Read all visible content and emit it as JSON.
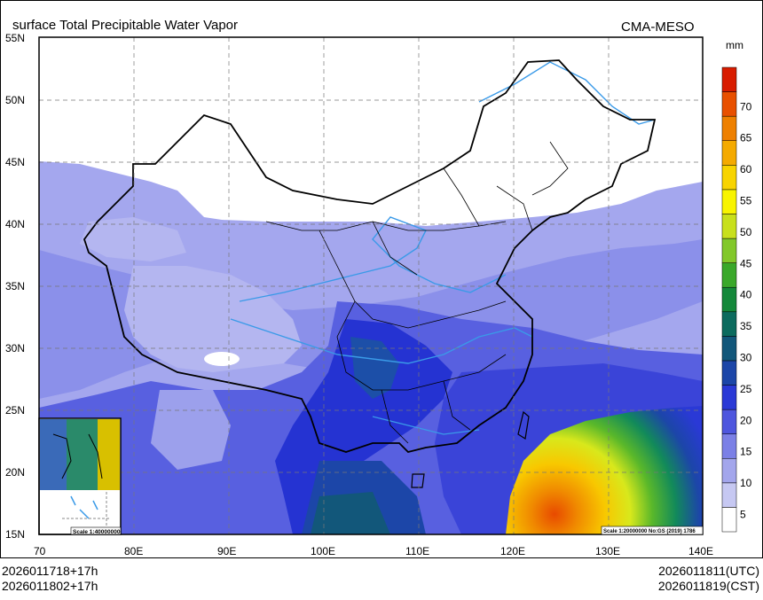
{
  "title": "surface Total Precipitable Water Vapor",
  "model": "CMA-MESO",
  "unit": "mm",
  "footer": {
    "left_line1": "2026011718+17h",
    "left_line2": "2026011802+17h",
    "right_line1": "2026011811(UTC)",
    "right_line2": "2026011819(CST)"
  },
  "map": {
    "lon_ticks": [
      "70",
      "80E",
      "90E",
      "100E",
      "110E",
      "120E",
      "130E",
      "140E"
    ],
    "lat_ticks": [
      "55N",
      "50N",
      "45N",
      "40N",
      "35N",
      "30N",
      "25N",
      "20N",
      "15N"
    ],
    "scale_main": "Scale 1:20000000 No:GS (2019) 1786",
    "scale_inset": "Scale 1:40000000"
  },
  "colorbar": {
    "labels": [
      "5",
      "10",
      "15",
      "20",
      "25",
      "30",
      "35",
      "40",
      "45",
      "50",
      "55",
      "60",
      "65",
      "70"
    ],
    "colors": [
      "#ffffff",
      "#c6c8f2",
      "#a3a6ec",
      "#7b80e6",
      "#4e56de",
      "#2a39d6",
      "#1c46a8",
      "#12577a",
      "#0c6b5e",
      "#14883a",
      "#3aa82a",
      "#82c82a",
      "#c8e01c",
      "#f8f400",
      "#f8d400",
      "#f4aa00",
      "#ee8000",
      "#e85000",
      "#d81c00"
    ]
  },
  "colors": {
    "low_pw": "#a4a7ee",
    "mid_pw": "#5860e0",
    "high_pw": "#2533d2",
    "dry": "#ffffff",
    "border": "#000000",
    "river": "#3a9ae8"
  }
}
